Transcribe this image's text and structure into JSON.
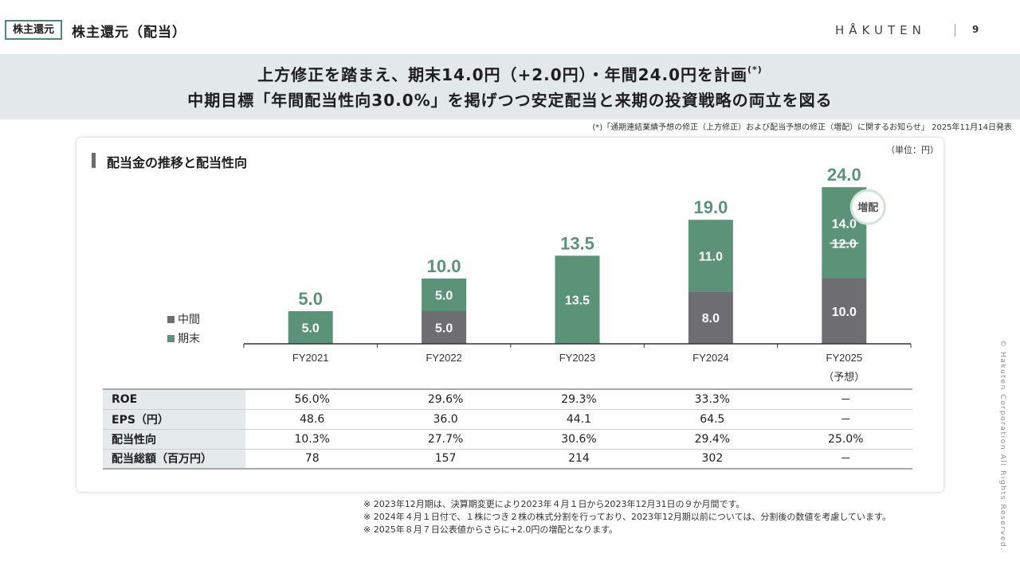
{
  "header": {
    "tag": "株主還元",
    "title": "株主還元（配当）",
    "brand": "HÅKUTEN",
    "page_number": "9"
  },
  "banner": {
    "line1": "上方修正を踏まえ、期末14.0円（+2.0円）・年間24.0円を計画",
    "line1_sup": "(*)",
    "line2": "中期目標「年間配当性向30.0%」を掲げつつ安定配当と来期の投資戦略の両立を図る"
  },
  "source_note": "(*)「通期連結業績予想の修正（上方修正）および配当予想の修正（増配）に関するお知らせ」 2025年11月14日発表",
  "section": {
    "title": "配当金の推移と配当性向",
    "unit": "（単位：円）"
  },
  "legend": [
    {
      "label": "中間",
      "color": "#6e6e72"
    },
    {
      "label": "期末",
      "color": "#5b9378"
    }
  ],
  "chart_data": {
    "type": "bar",
    "stacked": true,
    "title": "配当金の推移と配当性向",
    "unit": "（単位：円）",
    "categories": [
      "FY2021",
      "FY2022",
      "FY2023",
      "FY2024",
      "FY2025"
    ],
    "category_sublabels": [
      "",
      "",
      "",
      "",
      "（予想）"
    ],
    "series": [
      {
        "name": "中間",
        "color": "#6e6e72",
        "values": [
          0,
          5.0,
          0,
          8.0,
          10.0
        ]
      },
      {
        "name": "期末",
        "color": "#5b9378",
        "values": [
          5.0,
          5.0,
          13.5,
          11.0,
          14.0
        ]
      }
    ],
    "segment_labels": {
      "中間": [
        "",
        "5.0",
        "",
        "8.0",
        "10.0"
      ],
      "期末": [
        "5.0",
        "5.0",
        "13.5",
        "11.0",
        "14.0"
      ]
    },
    "totals": [
      "5.0",
      "10.0",
      "13.5",
      "19.0",
      "24.0"
    ],
    "previous_forecast": {
      "category": "FY2025",
      "series": "期末",
      "label": "12.0"
    },
    "badge": {
      "category": "FY2025",
      "text": "増配"
    },
    "ylim": [
      0,
      25
    ],
    "total_color": "#5b9378"
  },
  "table": {
    "rows": [
      {
        "label": "ROE",
        "values": [
          "56.0%",
          "29.6%",
          "29.3%",
          "33.3%",
          "－"
        ]
      },
      {
        "label": "EPS（円）",
        "values": [
          "48.6",
          "36.0",
          "44.1",
          "64.5",
          "－"
        ]
      },
      {
        "label": "配当性向",
        "values": [
          "10.3%",
          "27.7%",
          "30.6%",
          "29.4%",
          "25.0%"
        ]
      },
      {
        "label": "配当総額（百万円）",
        "values": [
          "78",
          "157",
          "214",
          "302",
          "－"
        ]
      }
    ]
  },
  "footnotes": [
    "※  2023年12月期は、決算期変更により2023年４月１日から2023年12月31日の９か月間です。",
    "※  2024年４月１日付で、１株につき２株の株式分割を行っており、2023年12月期以前については、分割後の数値を考慮しています。",
    "※  2025年８月７日公表値からさらに+2.0円の増配となります。"
  ],
  "copyright": "© Hakuten Corporation All Rights Reserved."
}
